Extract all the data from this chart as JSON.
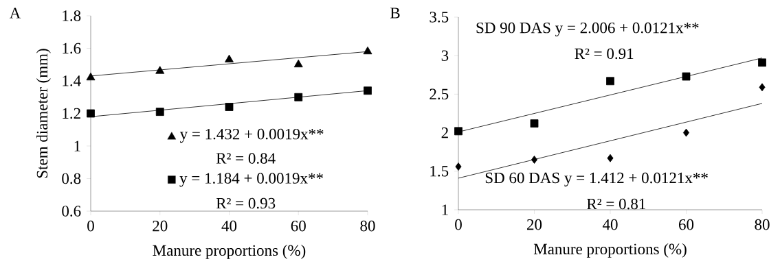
{
  "chart_data": [
    {
      "type": "scatter",
      "title": "A",
      "xlabel": "Manure proportions (%)",
      "ylabel": "Stem diameter  (mm)",
      "xlim": [
        0,
        80
      ],
      "xticks": [
        0,
        20,
        40,
        60,
        80
      ],
      "ylim": [
        0.6,
        1.8
      ],
      "yticks": [
        0.6,
        0.8,
        1,
        1.2,
        1.4,
        1.6,
        1.8
      ],
      "legend": "bottom right",
      "series": [
        {
          "name": "y = 1.432 + 0.0019x**",
          "color": "#000000",
          "marker": "triangle",
          "x": [
            0,
            20,
            40,
            60,
            80
          ],
          "values": [
            1.42,
            1.46,
            1.53,
            1.5,
            1.58
          ]
        },
        {
          "type": "line",
          "color": "#000000",
          "marker": "none",
          "x": [
            0,
            80
          ],
          "values": [
            1.43,
            1.58
          ]
        },
        {
          "name": "y = 1.184 + 0.0019x**",
          "color": "#000000",
          "marker": "square",
          "x": [
            0,
            20,
            40,
            60,
            80
          ],
          "values": [
            1.2,
            1.21,
            1.24,
            1.3,
            1.34
          ]
        },
        {
          "type": "line",
          "color": "#000000",
          "marker": "none",
          "x": [
            0,
            80
          ],
          "values": [
            1.18,
            1.34
          ]
        }
      ],
      "annotations": [
        "R² = 0.84",
        "R² = 0.93"
      ]
    },
    {
      "type": "scatter",
      "title": "B",
      "xlabel": "Manure proportions (%)",
      "xlim": [
        0,
        80
      ],
      "xticks": [
        0,
        20,
        40,
        60,
        80
      ],
      "ylim": [
        1,
        3.5
      ],
      "yticks": [
        1,
        1.5,
        2,
        2.5,
        3,
        3.5
      ],
      "series": [
        {
          "color": "#000000",
          "marker": "square",
          "x": [
            0,
            20,
            40,
            60,
            80
          ],
          "values": [
            2.02,
            2.12,
            2.67,
            2.73,
            2.91
          ]
        },
        {
          "type": "line",
          "color": "#000000",
          "marker": "none",
          "x": [
            0,
            80
          ],
          "values": [
            2.01,
            2.97
          ]
        },
        {
          "color": "#000000",
          "marker": "diamond",
          "x": [
            0,
            20,
            40,
            60,
            80
          ],
          "values": [
            1.56,
            1.65,
            1.67,
            2.0,
            2.59
          ]
        },
        {
          "type": "line",
          "color": "#000000",
          "marker": "none",
          "x": [
            0,
            80
          ],
          "values": [
            1.41,
            2.38
          ]
        }
      ],
      "annotations": [
        "SD 90 DAS y = 2.006 + 0.0121x**",
        "R² = 0.91",
        "SD 60 DAS y = 1.412 + 0.0121x**",
        "R² = 0.81"
      ]
    }
  ]
}
